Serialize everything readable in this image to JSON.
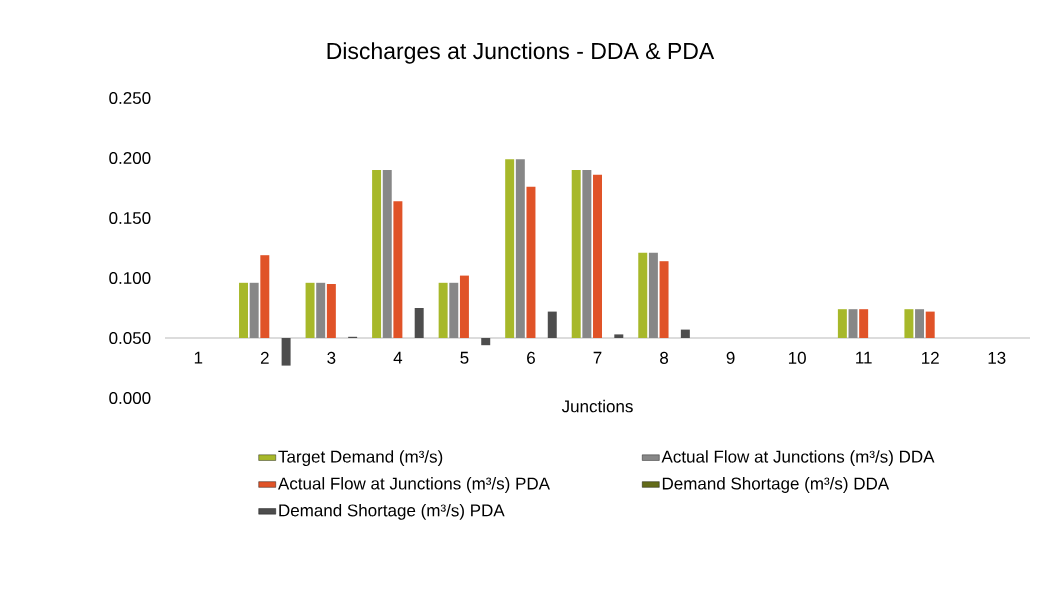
{
  "chart_data": {
    "type": "bar",
    "title": "Discharges at Junctions - DDA & PDA",
    "xlabel": "Junctions",
    "categories": [
      "1",
      "2",
      "3",
      "4",
      "5",
      "6",
      "7",
      "8",
      "9",
      "10",
      "11",
      "12",
      "13"
    ],
    "ylim": [
      0,
      0.25
    ],
    "yticks": [
      {
        "value": 0,
        "label": "0.000"
      },
      {
        "value": 0.05,
        "label": "0.050"
      },
      {
        "value": 0.1,
        "label": "0.100"
      },
      {
        "value": 0.15,
        "label": "0.150"
      },
      {
        "value": 0.2,
        "label": "0.200"
      },
      {
        "value": 0.25,
        "label": "0.250"
      }
    ],
    "legend": "bottom",
    "series": [
      {
        "name": "Target Demand (m³/s)",
        "color": "#a7b82a",
        "base": [
          null,
          0.05,
          0.05,
          0.05,
          0.05,
          0.05,
          0.05,
          0.05,
          null,
          null,
          0.05,
          0.05,
          null
        ],
        "values": [
          null,
          0.046,
          0.046,
          0.14,
          0.046,
          0.149,
          0.14,
          0.071,
          null,
          null,
          0.024,
          0.024,
          null
        ]
      },
      {
        "name": "Actual Flow at Junctions (m³/s) DDA",
        "color": "#878787",
        "base": [
          null,
          0.05,
          0.05,
          0.05,
          0.05,
          0.05,
          0.05,
          0.05,
          null,
          null,
          0.05,
          0.05,
          null
        ],
        "values": [
          null,
          0.046,
          0.046,
          0.14,
          0.046,
          0.149,
          0.14,
          0.071,
          null,
          null,
          0.024,
          0.024,
          null
        ]
      },
      {
        "name": "Actual Flow at Junctions (m³/s) PDA",
        "color": "#e05328",
        "base": [
          null,
          0.05,
          0.05,
          0.05,
          0.05,
          0.05,
          0.05,
          0.05,
          null,
          null,
          0.05,
          0.05,
          null
        ],
        "values": [
          null,
          0.069,
          0.045,
          0.114,
          0.052,
          0.126,
          0.136,
          0.064,
          null,
          null,
          0.024,
          0.022,
          null
        ]
      },
      {
        "name": "Demand Shortage (m³/s) DDA",
        "color": "#636b1a",
        "values": [
          null,
          null,
          null,
          null,
          null,
          null,
          null,
          null,
          null,
          null,
          null,
          null,
          null
        ]
      },
      {
        "name": "Demand Shortage (m³/s) PDA",
        "color": "#4d4d4d",
        "base": [
          null,
          0.05,
          0.05,
          0.05,
          0.05,
          0.05,
          0.05,
          0.05,
          null,
          null,
          null,
          null,
          null
        ],
        "values": [
          null,
          -0.023,
          0.001,
          0.025,
          -0.006,
          0.022,
          0.003,
          0.007,
          null,
          null,
          null,
          null,
          null
        ]
      }
    ]
  }
}
